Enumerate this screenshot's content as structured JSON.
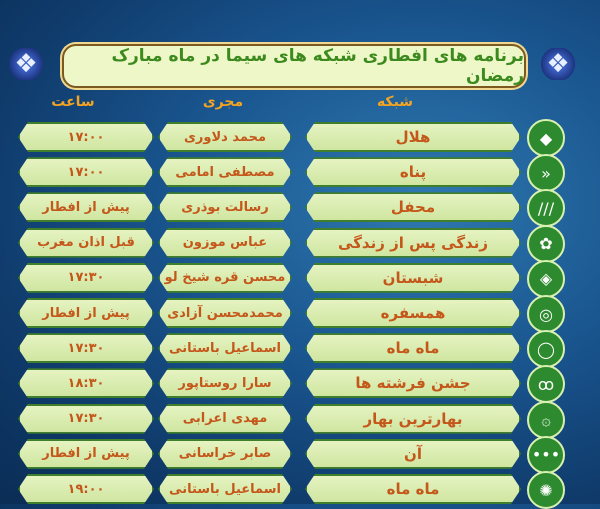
{
  "title": "برنامه های افطاری شبکه های سیما در ماه مبارک رمضان",
  "headers": {
    "network": "شبکه",
    "host": "مجری",
    "time": "ساعت"
  },
  "colors": {
    "plate": "#d9ecb0",
    "text": "#c4571a",
    "header": "#f2a422",
    "title": "#3c8a1e",
    "background": "#1a5690"
  },
  "rows": [
    {
      "network": "هلال",
      "host": "محمد دلاوری",
      "time": "۱۷:۰۰",
      "icon": "channel1-logo-icon"
    },
    {
      "network": "پناه",
      "host": "مصطفی امامی",
      "time": "۱۷:۰۰",
      "icon": "channel2-logo-icon"
    },
    {
      "network": "محفل",
      "host": "رسالت بوذری",
      "time": "پیش از افطار",
      "icon": "channel3-logo-icon"
    },
    {
      "network": "زندگی پس از زندگی",
      "host": "عباس موزون",
      "time": "قبل اذان مغرب",
      "icon": "channel4-logo-icon"
    },
    {
      "network": "شبستان",
      "host": "محسن قره شیخ لو",
      "time": "۱۷:۳۰",
      "icon": "channel5-logo-icon"
    },
    {
      "network": "همسفره",
      "host": "محمدمحسن آزادی",
      "time": "پیش از افطار",
      "icon": "nasim-logo-icon"
    },
    {
      "network": "ماه ماه",
      "host": "اسماعیل باستانی",
      "time": "۱۷:۳۰",
      "icon": "ifilm-logo-icon"
    },
    {
      "network": "جشن فرشته ها",
      "host": "سارا روستاپور",
      "time": "۱۸:۳۰",
      "icon": "pooya-logo-icon"
    },
    {
      "network": "بهارترین بهار",
      "host": "مهدی اعرابی",
      "time": "۱۷:۳۰",
      "icon": "quran-logo-icon"
    },
    {
      "network": "آن",
      "host": "صابر خراسانی",
      "time": "پیش از افطار",
      "icon": "ofogh-logo-icon"
    },
    {
      "network": "ماه ماه",
      "host": "اسماعیل باستانی",
      "time": "۱۹:۰۰",
      "icon": "tehran-logo-icon"
    }
  ]
}
